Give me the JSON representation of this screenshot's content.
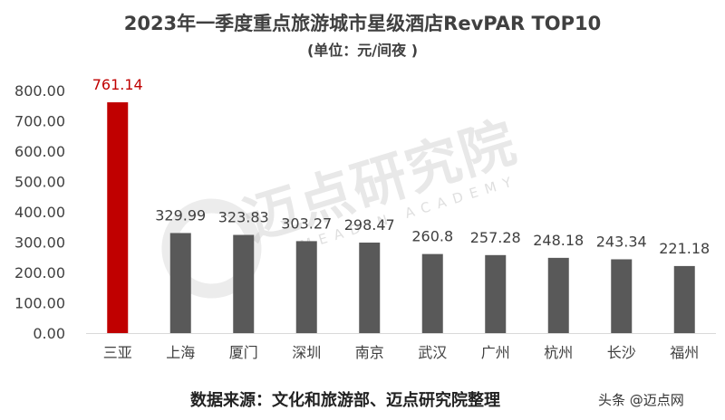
{
  "chart_data": {
    "type": "bar",
    "title": "2023年一季度重点旅游城市星级酒店RevPAR TOP10",
    "subtitle": "(单位：元/间夜 )",
    "categories": [
      "三亚",
      "上海",
      "厦门",
      "深圳",
      "南京",
      "武汉",
      "广州",
      "杭州",
      "长沙",
      "福州"
    ],
    "values": [
      761.14,
      329.99,
      323.83,
      303.27,
      298.47,
      260.8,
      257.28,
      248.18,
      243.34,
      221.18
    ],
    "value_labels": [
      "761.14",
      "329.99",
      "323.83",
      "303.27",
      "298.47",
      "260.8",
      "257.28",
      "248.18",
      "243.34",
      "221.18"
    ],
    "ylim": [
      0,
      800
    ],
    "yticks": [
      0,
      100,
      200,
      300,
      400,
      500,
      600,
      700,
      800
    ],
    "ytick_labels": [
      "0.00",
      "100.00",
      "200.00",
      "300.00",
      "400.00",
      "500.00",
      "600.00",
      "700.00",
      "800.00"
    ],
    "grid": false,
    "legend": "none",
    "colors": {
      "highlight": "#c00000",
      "bar": "#595959",
      "highlight_label": "#c00000",
      "label": "#404040"
    }
  },
  "footer": {
    "source": "数据来源：文化和旅游部、迈点研究院整理",
    "brand": "头条 @迈点网"
  },
  "watermark": {
    "main": "迈点研究院",
    "sub": "MEADIN ACADEMY"
  }
}
